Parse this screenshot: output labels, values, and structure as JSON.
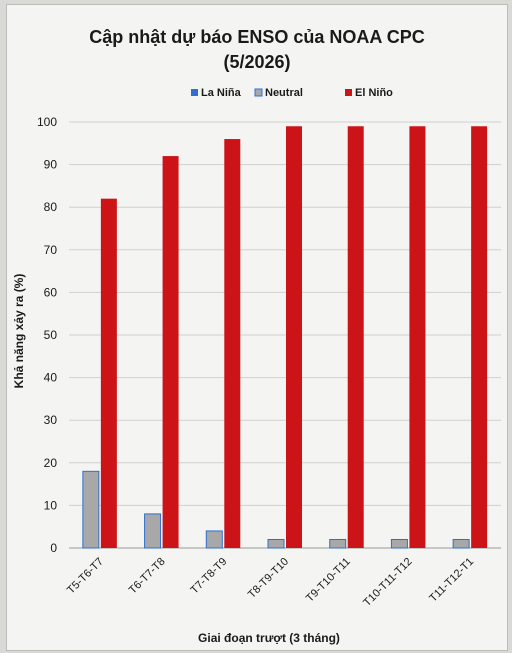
{
  "chart_data": {
    "type": "bar",
    "title": "Cập nhật dự báo ENSO của NOAA CPC",
    "subtitle": "(5/2026)",
    "xlabel": "Giai đoạn trượt (3 tháng)",
    "ylabel": "Khả năng xảy ra (%)",
    "ylim": [
      0,
      100
    ],
    "yticks": [
      0,
      10,
      20,
      30,
      40,
      50,
      60,
      70,
      80,
      90,
      100
    ],
    "grid": true,
    "legend_position": "top",
    "categories": [
      "T5-T6-T7",
      "T6-T7-T8",
      "T7-T8-T9",
      "T8-T9-T10",
      "T9-T10-T11",
      "T10-T11-T12",
      "T11-T12-T1"
    ],
    "series": [
      {
        "name": "La Niña",
        "color": "#2f6fd0",
        "values": [
          0,
          0,
          0,
          0,
          0,
          0,
          0
        ]
      },
      {
        "name": "Neutral",
        "color": "#a8a8a8",
        "border": "#2f6fd0",
        "values": [
          18,
          8,
          4,
          2,
          2,
          2,
          2
        ]
      },
      {
        "name": "El Niño",
        "color": "#cc1418",
        "values": [
          82,
          92,
          96,
          99,
          99,
          99,
          99
        ]
      }
    ]
  }
}
